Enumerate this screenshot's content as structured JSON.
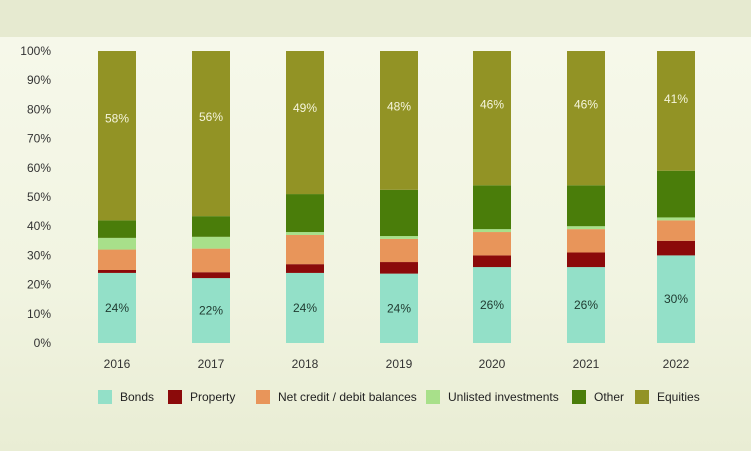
{
  "chart_data": {
    "type": "bar",
    "stacked": true,
    "categories": [
      "2016",
      "2017",
      "2018",
      "2019",
      "2020",
      "2021",
      "2022"
    ],
    "ylim": [
      0,
      100
    ],
    "yticks": [
      "0%",
      "10%",
      "20%",
      "30%",
      "40%",
      "50%",
      "60%",
      "70%",
      "80%",
      "90%",
      "100%"
    ],
    "grid": false,
    "legend_position": "bottom",
    "series": [
      {
        "name": "Bonds",
        "color": "#93e0c8",
        "values": [
          24,
          22,
          24,
          24,
          26,
          26,
          30
        ],
        "labels": [
          "24%",
          "22%",
          "24%",
          "24%",
          "26%",
          "26%",
          "30%"
        ]
      },
      {
        "name": "Property",
        "color": "#8b0a0a",
        "values": [
          1,
          2,
          3,
          4,
          4,
          5,
          5
        ]
      },
      {
        "name": "Net credit / debit balances",
        "color": "#e8955a",
        "values": [
          7,
          8,
          10,
          8,
          8,
          8,
          7
        ]
      },
      {
        "name": "Unlisted investments",
        "color": "#a8e08a",
        "values": [
          4,
          4,
          1,
          1,
          1,
          1,
          1
        ]
      },
      {
        "name": "Other",
        "color": "#4a7d0a",
        "values": [
          6,
          7,
          13,
          16,
          15,
          14,
          16
        ]
      },
      {
        "name": "Equities",
        "color": "#929325",
        "values": [
          58,
          56,
          49,
          48,
          46,
          46,
          41
        ],
        "labels": [
          "58%",
          "56%",
          "49%",
          "48%",
          "46%",
          "46%",
          "41%"
        ]
      }
    ]
  }
}
